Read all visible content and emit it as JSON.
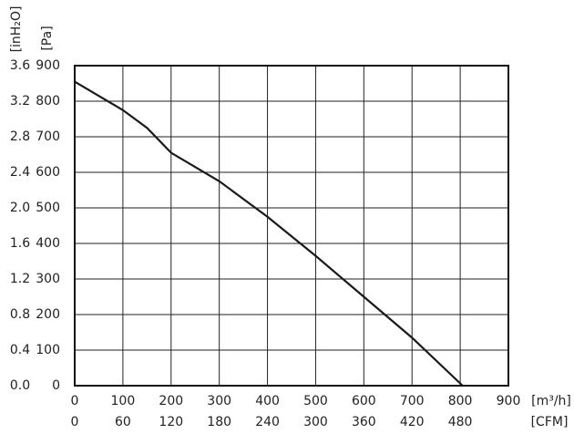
{
  "chart_data": {
    "type": "line",
    "x": [
      0,
      50,
      100,
      150,
      200,
      250,
      300,
      400,
      500,
      600,
      700,
      805
    ],
    "series": [
      {
        "color": "#1a1a1a",
        "values": [
          855,
          815,
          775,
          725,
          655,
          615,
          575,
          475,
          365,
          250,
          135,
          0
        ]
      }
    ],
    "xlim": [
      0,
      900
    ],
    "xticks": [
      0,
      100,
      200,
      300,
      400,
      500,
      600,
      700,
      800,
      900
    ],
    "x2lim": [
      0,
      540
    ],
    "x2ticks": [
      0,
      60,
      120,
      180,
      240,
      300,
      360,
      420,
      480
    ],
    "ylim": [
      0,
      900
    ],
    "yticks": [
      0,
      100,
      200,
      300,
      400,
      500,
      600,
      700,
      800,
      900
    ],
    "y2lim": [
      0,
      3.6
    ],
    "y2ticks": [
      {
        "value": 0,
        "label": "0.0"
      },
      0.4,
      0.8,
      1.2,
      1.6,
      {
        "value": 2,
        "label": "2.0"
      },
      2.4,
      2.8,
      3.2,
      3.6
    ],
    "x_label": "[m³/h]",
    "x2_label": "[CFM]",
    "y_label": "[Pa]",
    "y2_label": "[inH₂O]",
    "grid": true
  }
}
